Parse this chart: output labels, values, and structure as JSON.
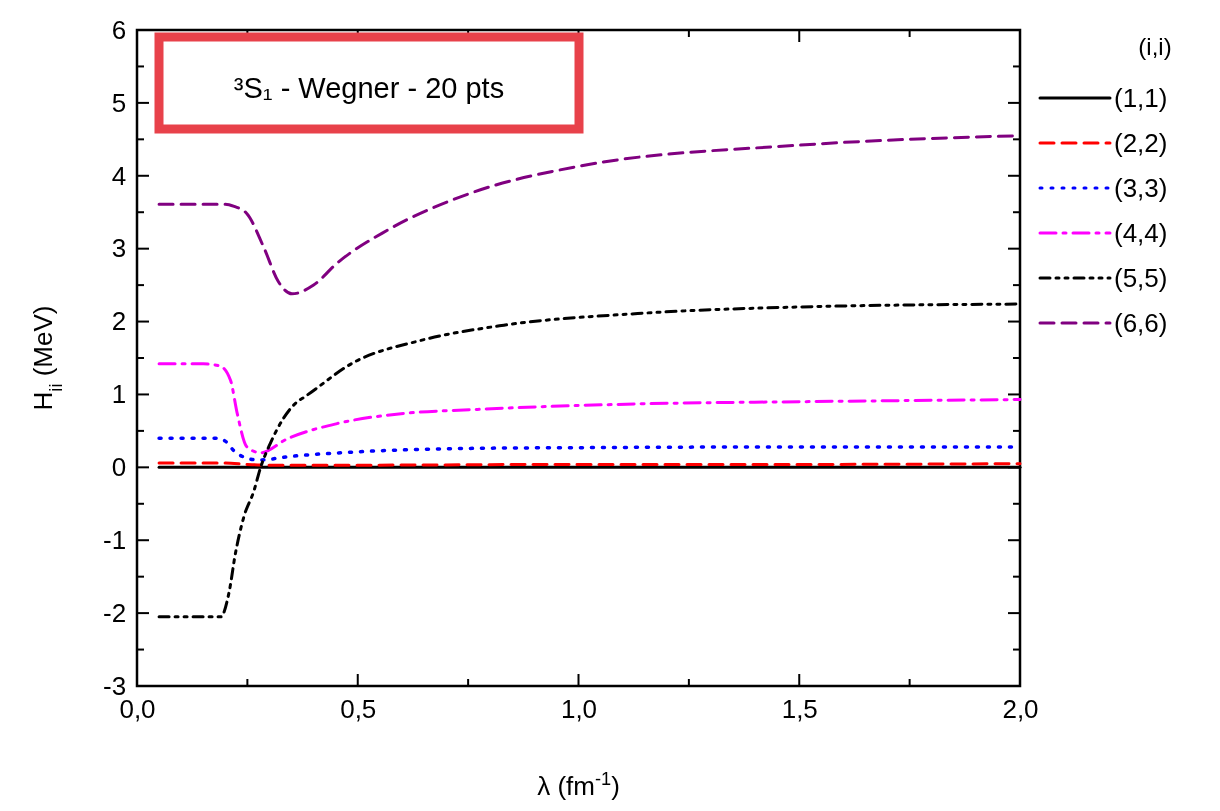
{
  "chart_data": {
    "type": "line",
    "xlabel": "λ (fm$^{-1}$)",
    "ylabel": "H$_{ii}$ (MeV)",
    "legend_title": "(i,i)",
    "annotations": [
      "³S₁ - Wegner - 20 pts"
    ],
    "xlim": [
      0,
      2
    ],
    "ylim": [
      -3,
      6
    ],
    "xticks": [
      {
        "value": 0,
        "label": "0,0"
      },
      {
        "value": 0.25,
        "label": null
      },
      {
        "value": 0.5,
        "label": "0,5"
      },
      {
        "value": 0.75,
        "label": null
      },
      {
        "value": 1,
        "label": "1,0"
      },
      {
        "value": 1.25,
        "label": null
      },
      {
        "value": 1.5,
        "label": "1,5"
      },
      {
        "value": 1.75,
        "label": null
      },
      {
        "value": 2,
        "label": "2,0"
      }
    ],
    "yticks": [
      -3,
      {
        "value": -2.5,
        "label": null
      },
      -2,
      {
        "value": -1.5,
        "label": null
      },
      -1,
      {
        "value": -0.5,
        "label": null
      },
      0,
      {
        "value": 0.5,
        "label": null
      },
      1,
      {
        "value": 1.5,
        "label": null
      },
      2,
      {
        "value": 2.5,
        "label": null
      },
      3,
      {
        "value": 3.5,
        "label": null
      },
      4,
      {
        "value": 4.5,
        "label": null
      },
      5,
      {
        "value": 5.5,
        "label": null
      },
      6
    ],
    "grid": false,
    "legend": "right",
    "marker": "none",
    "series": [
      {
        "name": "(1,1)",
        "color": "#000000",
        "line_style": "solid",
        "x": [
          0.05,
          2.0
        ],
        "values": [
          0,
          0
        ]
      },
      {
        "name": "(2,2)",
        "color": "#ff0000",
        "line_style": "dashed",
        "x": [
          0.05,
          0.2,
          0.25,
          0.3,
          0.5,
          1.0,
          1.5,
          2.0
        ],
        "values": [
          0.06,
          0.06,
          0.04,
          0.03,
          0.03,
          0.04,
          0.04,
          0.05
        ]
      },
      {
        "name": "(3,3)",
        "color": "#0000ff",
        "line_style": "dotted",
        "x": [
          0.05,
          0.18,
          0.2,
          0.219,
          0.242,
          0.276,
          0.348,
          0.491,
          0.755,
          1.0,
          1.5,
          2.0
        ],
        "values": [
          0.4,
          0.4,
          0.36,
          0.23,
          0.14,
          0.1,
          0.15,
          0.21,
          0.26,
          0.27,
          0.28,
          0.28
        ]
      },
      {
        "name": "(4,4)",
        "color": "#ff00ff",
        "line_style": "dashdot",
        "x": [
          0.05,
          0.15,
          0.188,
          0.212,
          0.227,
          0.249,
          0.28,
          0.34,
          0.453,
          0.605,
          0.755,
          1.134,
          1.5,
          2.0
        ],
        "values": [
          1.42,
          1.42,
          1.39,
          1.19,
          0.74,
          0.28,
          0.2,
          0.39,
          0.6,
          0.74,
          0.79,
          0.87,
          0.9,
          0.93
        ]
      },
      {
        "name": "(5,5)",
        "color": "#000000",
        "line_style": "dashdotdot",
        "x": [
          0.05,
          0.19,
          0.208,
          0.223,
          0.242,
          0.265,
          0.28,
          0.302,
          0.363,
          0.378,
          0.491,
          0.642,
          0.831,
          1.134,
          1.5,
          2.0
        ],
        "values": [
          -2.05,
          -2.05,
          -1.73,
          -1.18,
          -0.68,
          -0.32,
          0,
          0.33,
          0.9,
          0.96,
          1.44,
          1.74,
          1.95,
          2.11,
          2.2,
          2.24
        ]
      },
      {
        "name": "(6,6)",
        "color": "#800080",
        "line_style": "dashed",
        "x": [
          0.05,
          0.2,
          0.22,
          0.249,
          0.287,
          0.32,
          0.351,
          0.4,
          0.453,
          0.566,
          0.755,
          1.0,
          1.5,
          2.0
        ],
        "values": [
          3.61,
          3.61,
          3.58,
          3.48,
          3.02,
          2.55,
          2.38,
          2.5,
          2.8,
          3.25,
          3.76,
          4.13,
          4.42,
          4.55
        ]
      }
    ]
  }
}
